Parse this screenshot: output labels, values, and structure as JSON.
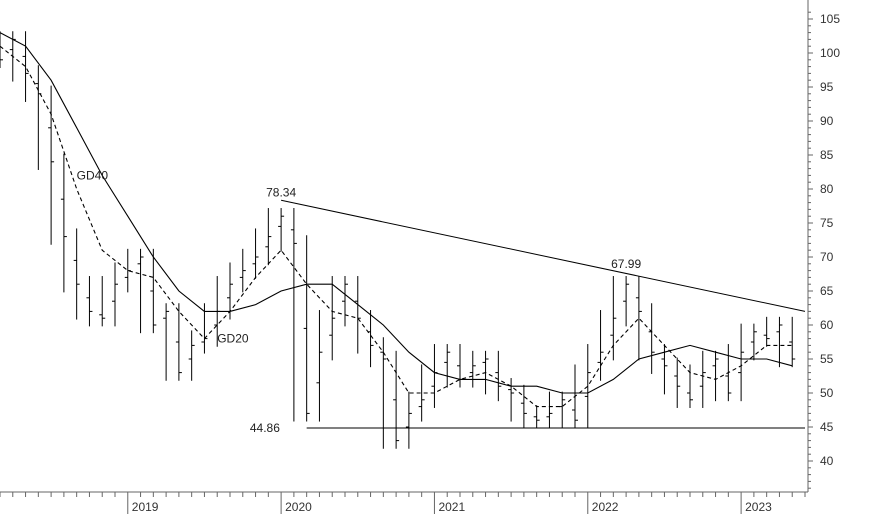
{
  "colors": {
    "price_bars": "#000000",
    "moving_averages": "#000000",
    "trendlines": "#000000",
    "axis": "#666666",
    "background": "#ffffff"
  },
  "chart_data": {
    "type": "ohlc",
    "title": "",
    "xlabel": "",
    "ylabel": "",
    "ylim": [
      35,
      107
    ],
    "xlim": [
      "2018-03",
      "2023-06"
    ],
    "x_tick_labels": [
      "2019",
      "2020",
      "2021",
      "2022",
      "2023"
    ],
    "y_tick_labels": [
      "40",
      "45",
      "50",
      "55",
      "60",
      "65",
      "70",
      "75",
      "80",
      "85",
      "90",
      "95",
      "100",
      "105"
    ],
    "y_axis_position": "right",
    "grid": false,
    "legend": "none",
    "price_bars_weekly_close": [
      {
        "x": "2018-03",
        "y": 99
      },
      {
        "x": "2018-04",
        "y": 102
      },
      {
        "x": "2018-05",
        "y": 97
      },
      {
        "x": "2018-06",
        "y": 94
      },
      {
        "x": "2018-07",
        "y": 84
      },
      {
        "x": "2018-08",
        "y": 73
      },
      {
        "x": "2018-09",
        "y": 66
      },
      {
        "x": "2018-10",
        "y": 62
      },
      {
        "x": "2018-11",
        "y": 61
      },
      {
        "x": "2018-12",
        "y": 66
      },
      {
        "x": "2019-01",
        "y": 68
      },
      {
        "x": "2019-02",
        "y": 70
      },
      {
        "x": "2019-03",
        "y": 60
      },
      {
        "x": "2019-04",
        "y": 62
      },
      {
        "x": "2019-05",
        "y": 53
      },
      {
        "x": "2019-06",
        "y": 57
      },
      {
        "x": "2019-07",
        "y": 58
      },
      {
        "x": "2019-08",
        "y": 62
      },
      {
        "x": "2019-09",
        "y": 66
      },
      {
        "x": "2019-10",
        "y": 68
      },
      {
        "x": "2019-11",
        "y": 70
      },
      {
        "x": "2019-12",
        "y": 73
      },
      {
        "x": "2020-01",
        "y": 76
      },
      {
        "x": "2020-02",
        "y": 72
      },
      {
        "x": "2020-03",
        "y": 47
      },
      {
        "x": "2020-04",
        "y": 56
      },
      {
        "x": "2020-05",
        "y": 61
      },
      {
        "x": "2020-06",
        "y": 66
      },
      {
        "x": "2020-07",
        "y": 61
      },
      {
        "x": "2020-08",
        "y": 57
      },
      {
        "x": "2020-09",
        "y": 55
      },
      {
        "x": "2020-10",
        "y": 43
      },
      {
        "x": "2020-11",
        "y": 47
      },
      {
        "x": "2020-12",
        "y": 49
      },
      {
        "x": "2021-01",
        "y": 53
      },
      {
        "x": "2021-02",
        "y": 56
      },
      {
        "x": "2021-03",
        "y": 52
      },
      {
        "x": "2021-04",
        "y": 54
      },
      {
        "x": "2021-05",
        "y": 55
      },
      {
        "x": "2021-06",
        "y": 51
      },
      {
        "x": "2021-07",
        "y": 50
      },
      {
        "x": "2021-08",
        "y": 47
      },
      {
        "x": "2021-09",
        "y": 46
      },
      {
        "x": "2021-10",
        "y": 47
      },
      {
        "x": "2021-11",
        "y": 49
      },
      {
        "x": "2021-12",
        "y": 46
      },
      {
        "x": "2022-01",
        "y": 53
      },
      {
        "x": "2022-02",
        "y": 56
      },
      {
        "x": "2022-03",
        "y": 61
      },
      {
        "x": "2022-04",
        "y": 66
      },
      {
        "x": "2022-05",
        "y": 62
      },
      {
        "x": "2022-06",
        "y": 56
      },
      {
        "x": "2022-07",
        "y": 54
      },
      {
        "x": "2022-08",
        "y": 51
      },
      {
        "x": "2022-09",
        "y": 49
      },
      {
        "x": "2022-10",
        "y": 53
      },
      {
        "x": "2022-11",
        "y": 55
      },
      {
        "x": "2022-12",
        "y": 50
      },
      {
        "x": "2023-01",
        "y": 56
      },
      {
        "x": "2023-02",
        "y": 59
      },
      {
        "x": "2023-03",
        "y": 58
      },
      {
        "x": "2023-04",
        "y": 60
      },
      {
        "x": "2023-05",
        "y": 55
      }
    ],
    "series": [
      {
        "name": "GD40",
        "style": "solid",
        "points": [
          {
            "x": "2018-03",
            "y": 103
          },
          {
            "x": "2018-05",
            "y": 101
          },
          {
            "x": "2018-07",
            "y": 96
          },
          {
            "x": "2018-09",
            "y": 89
          },
          {
            "x": "2018-11",
            "y": 82
          },
          {
            "x": "2019-01",
            "y": 76
          },
          {
            "x": "2019-03",
            "y": 70
          },
          {
            "x": "2019-05",
            "y": 65
          },
          {
            "x": "2019-07",
            "y": 62
          },
          {
            "x": "2019-09",
            "y": 62
          },
          {
            "x": "2019-11",
            "y": 63
          },
          {
            "x": "2020-01",
            "y": 65
          },
          {
            "x": "2020-03",
            "y": 66
          },
          {
            "x": "2020-05",
            "y": 66
          },
          {
            "x": "2020-07",
            "y": 63
          },
          {
            "x": "2020-09",
            "y": 60
          },
          {
            "x": "2020-11",
            "y": 56
          },
          {
            "x": "2021-01",
            "y": 53
          },
          {
            "x": "2021-03",
            "y": 52
          },
          {
            "x": "2021-05",
            "y": 52
          },
          {
            "x": "2021-07",
            "y": 51
          },
          {
            "x": "2021-09",
            "y": 51
          },
          {
            "x": "2021-11",
            "y": 50
          },
          {
            "x": "2022-01",
            "y": 50
          },
          {
            "x": "2022-03",
            "y": 52
          },
          {
            "x": "2022-05",
            "y": 55
          },
          {
            "x": "2022-07",
            "y": 56
          },
          {
            "x": "2022-09",
            "y": 57
          },
          {
            "x": "2022-11",
            "y": 56
          },
          {
            "x": "2023-01",
            "y": 55
          },
          {
            "x": "2023-03",
            "y": 55
          },
          {
            "x": "2023-05",
            "y": 54
          }
        ]
      },
      {
        "name": "GD20",
        "style": "dashed",
        "points": [
          {
            "x": "2018-03",
            "y": 101
          },
          {
            "x": "2018-05",
            "y": 98
          },
          {
            "x": "2018-07",
            "y": 91
          },
          {
            "x": "2018-09",
            "y": 80
          },
          {
            "x": "2018-11",
            "y": 71
          },
          {
            "x": "2019-01",
            "y": 68
          },
          {
            "x": "2019-03",
            "y": 67
          },
          {
            "x": "2019-05",
            "y": 62
          },
          {
            "x": "2019-07",
            "y": 58
          },
          {
            "x": "2019-09",
            "y": 62
          },
          {
            "x": "2019-11",
            "y": 67
          },
          {
            "x": "2020-01",
            "y": 71
          },
          {
            "x": "2020-03",
            "y": 66
          },
          {
            "x": "2020-05",
            "y": 62
          },
          {
            "x": "2020-07",
            "y": 61
          },
          {
            "x": "2020-09",
            "y": 56
          },
          {
            "x": "2020-11",
            "y": 50
          },
          {
            "x": "2021-01",
            "y": 50
          },
          {
            "x": "2021-03",
            "y": 52
          },
          {
            "x": "2021-05",
            "y": 53
          },
          {
            "x": "2021-07",
            "y": 51
          },
          {
            "x": "2021-09",
            "y": 48
          },
          {
            "x": "2021-11",
            "y": 48
          },
          {
            "x": "2022-01",
            "y": 51
          },
          {
            "x": "2022-03",
            "y": 57
          },
          {
            "x": "2022-05",
            "y": 61
          },
          {
            "x": "2022-07",
            "y": 57
          },
          {
            "x": "2022-09",
            "y": 53
          },
          {
            "x": "2022-11",
            "y": 52
          },
          {
            "x": "2023-01",
            "y": 54
          },
          {
            "x": "2023-03",
            "y": 57
          },
          {
            "x": "2023-05",
            "y": 57
          }
        ]
      }
    ],
    "trendlines": [
      {
        "name": "resistance",
        "from": {
          "x": "2020-01",
          "y": 78.34
        },
        "to": {
          "x": "2023-06",
          "y": 62
        }
      },
      {
        "name": "support",
        "from": {
          "x": "2020-03",
          "y": 44.86
        },
        "to": {
          "x": "2023-06",
          "y": 44.86
        }
      }
    ],
    "annotations": [
      {
        "text": "GD40",
        "x": "2018-09",
        "y": 82
      },
      {
        "text": "GD20",
        "x": "2019-08",
        "y": 58
      },
      {
        "text": "78.34",
        "x": "2020-01",
        "y": 79.5
      },
      {
        "text": "67.99",
        "x": "2022-04",
        "y": 69
      },
      {
        "text": "44.86",
        "x": "2020-02",
        "y": 44.86
      }
    ]
  }
}
